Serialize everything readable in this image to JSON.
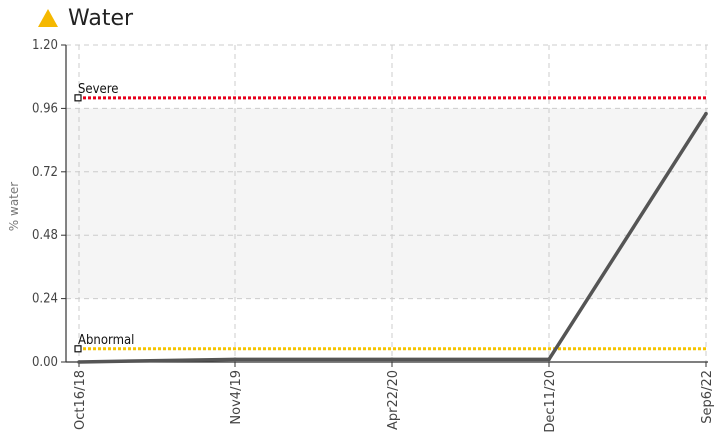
{
  "header": {
    "icon": "warning-triangle-icon",
    "icon_color": "#F5B800"
  },
  "chart_data": {
    "type": "line",
    "title": "Water",
    "ylabel": "% water",
    "xlabel": "",
    "ylim": [
      0,
      1.2
    ],
    "yticks": [
      "0.00",
      "0.24",
      "0.48",
      "0.72",
      "0.96",
      "1.20"
    ],
    "yticks_values": [
      0,
      0.24,
      0.48,
      0.72,
      0.96,
      1.2
    ],
    "x_tick_labels": [
      "Oct16/18",
      "Nov4/19",
      "Apr22/20",
      "Dec11/20",
      "Sep6/22"
    ],
    "grid": true,
    "normal_band": [
      0.24,
      0.96
    ],
    "thresholds": [
      {
        "label": "Severe",
        "value": 1.0,
        "color": "#E8001C"
      },
      {
        "label": "Abnormal",
        "value": 0.05,
        "color": "#F5C400"
      }
    ],
    "series": [
      {
        "color": "#555555",
        "x": [
          "Oct16/18",
          "Nov4/19",
          "Apr22/20",
          "Dec11/20",
          "Sep6/22"
        ],
        "values": [
          0.0,
          0.01,
          0.01,
          0.01,
          0.94
        ]
      }
    ]
  }
}
